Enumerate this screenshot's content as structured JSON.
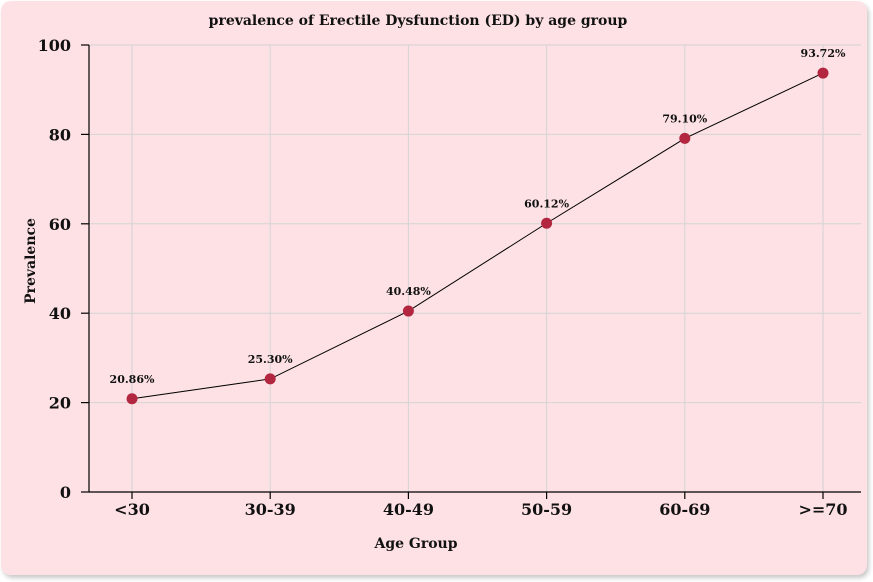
{
  "chart_data": {
    "type": "line",
    "title": "prevalence of Erectile Dysfunction (ED) by age group",
    "xlabel": "Age Group",
    "ylabel": "Prevalence",
    "categories": [
      "<30",
      "30-39",
      "40-49",
      "50-59",
      "60-69",
      ">=70"
    ],
    "series": [
      {
        "values": [
          20.86,
          25.3,
          40.48,
          60.12,
          79.1,
          93.72
        ],
        "data_labels": [
          "20.86%",
          "25.30%",
          "40.48%",
          "60.12%",
          "79.10%",
          "93.72%"
        ]
      }
    ],
    "ylim": [
      0,
      100
    ],
    "yticks": [
      "0",
      "20",
      "40",
      "60",
      "80",
      "100"
    ],
    "grid": true,
    "colors": {
      "background": "#fde1e4",
      "marker": "#b3263f",
      "line": "#000000",
      "grid": "#d4d4d4"
    }
  }
}
